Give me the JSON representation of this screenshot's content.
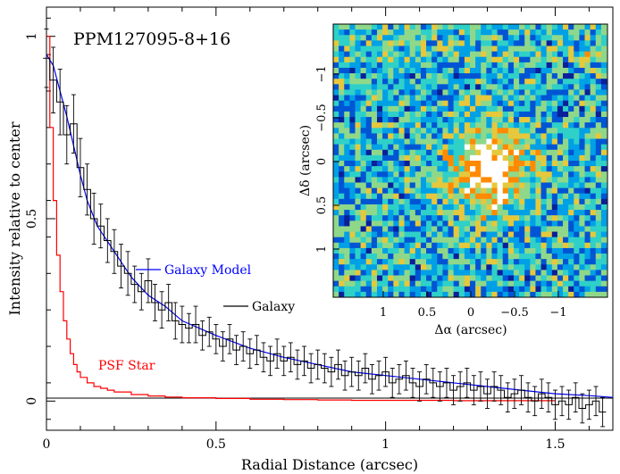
{
  "chart_data": {
    "type": "line",
    "title": "PPM127095-8+16",
    "xlabel": "Radial Distance (arcsec)",
    "ylabel": "Intensity relative to center",
    "xlim": [
      0,
      1.67
    ],
    "ylim": [
      -0.08,
      1.08
    ],
    "x_ticks": [
      0,
      0.5,
      1,
      1.5
    ],
    "x_tick_labels": [
      "0",
      "0.5",
      "1",
      "1.5"
    ],
    "y_ticks": [
      0,
      0.5,
      1
    ],
    "y_tick_labels": [
      "0",
      "0.5",
      "1"
    ],
    "series": [
      {
        "name": "Galaxy",
        "color": "#000000",
        "style": "step-with-errorbars",
        "x": [
          0.0,
          0.02,
          0.04,
          0.06,
          0.08,
          0.1,
          0.12,
          0.14,
          0.16,
          0.18,
          0.2,
          0.22,
          0.24,
          0.26,
          0.28,
          0.3,
          0.32,
          0.34,
          0.36,
          0.38,
          0.4,
          0.42,
          0.44,
          0.46,
          0.48,
          0.5,
          0.52,
          0.54,
          0.56,
          0.58,
          0.6,
          0.62,
          0.64,
          0.66,
          0.68,
          0.7,
          0.72,
          0.74,
          0.76,
          0.78,
          0.8,
          0.82,
          0.84,
          0.86,
          0.88,
          0.9,
          0.92,
          0.94,
          0.96,
          0.98,
          1.0,
          1.02,
          1.04,
          1.06,
          1.08,
          1.1,
          1.12,
          1.14,
          1.16,
          1.18,
          1.2,
          1.22,
          1.24,
          1.26,
          1.28,
          1.3,
          1.32,
          1.34,
          1.36,
          1.38,
          1.4,
          1.42,
          1.44,
          1.46,
          1.48,
          1.5,
          1.52,
          1.54,
          1.56,
          1.58,
          1.6,
          1.62,
          1.64
        ],
        "values": [
          0.94,
          0.88,
          0.82,
          0.73,
          0.76,
          0.64,
          0.58,
          0.5,
          0.48,
          0.44,
          0.41,
          0.37,
          0.35,
          0.32,
          0.3,
          0.33,
          0.27,
          0.25,
          0.27,
          0.22,
          0.21,
          0.2,
          0.21,
          0.18,
          0.19,
          0.17,
          0.15,
          0.17,
          0.14,
          0.15,
          0.13,
          0.14,
          0.12,
          0.11,
          0.13,
          0.11,
          0.12,
          0.1,
          0.11,
          0.09,
          0.1,
          0.09,
          0.08,
          0.1,
          0.07,
          0.08,
          0.07,
          0.09,
          0.06,
          0.07,
          0.08,
          0.05,
          0.06,
          0.07,
          0.05,
          0.04,
          0.06,
          0.05,
          0.04,
          0.05,
          0.03,
          0.04,
          0.05,
          0.03,
          0.04,
          0.02,
          0.04,
          0.03,
          0.01,
          0.02,
          0.03,
          0.01,
          0.0,
          0.02,
          0.01,
          -0.01,
          0.0,
          -0.01,
          0.01,
          -0.02,
          -0.01,
          0.0,
          -0.03
        ],
        "errors": [
          0.08,
          0.09,
          0.09,
          0.08,
          0.08,
          0.08,
          0.07,
          0.07,
          0.06,
          0.06,
          0.06,
          0.06,
          0.06,
          0.05,
          0.05,
          0.06,
          0.05,
          0.05,
          0.05,
          0.05,
          0.05,
          0.04,
          0.05,
          0.04,
          0.04,
          0.04,
          0.04,
          0.04,
          0.04,
          0.04,
          0.04,
          0.04,
          0.04,
          0.04,
          0.04,
          0.04,
          0.04,
          0.04,
          0.04,
          0.04,
          0.04,
          0.04,
          0.04,
          0.04,
          0.04,
          0.04,
          0.04,
          0.04,
          0.04,
          0.04,
          0.04,
          0.04,
          0.04,
          0.04,
          0.04,
          0.04,
          0.04,
          0.04,
          0.04,
          0.04,
          0.04,
          0.04,
          0.04,
          0.04,
          0.04,
          0.04,
          0.04,
          0.04,
          0.04,
          0.04,
          0.04,
          0.04,
          0.04,
          0.04,
          0.04,
          0.04,
          0.04,
          0.04,
          0.04,
          0.04,
          0.04,
          0.04,
          0.04
        ]
      },
      {
        "name": "Galaxy Model",
        "color": "#0000ff",
        "style": "line",
        "x": [
          0.0,
          0.02,
          0.04,
          0.06,
          0.08,
          0.1,
          0.12,
          0.15,
          0.2,
          0.25,
          0.3,
          0.35,
          0.4,
          0.5,
          0.6,
          0.7,
          0.8,
          0.9,
          1.0,
          1.1,
          1.2,
          1.3,
          1.4,
          1.5,
          1.6,
          1.67
        ],
        "values": [
          0.95,
          0.92,
          0.85,
          0.78,
          0.7,
          0.62,
          0.55,
          0.48,
          0.41,
          0.34,
          0.29,
          0.26,
          0.22,
          0.18,
          0.145,
          0.12,
          0.1,
          0.08,
          0.07,
          0.06,
          0.05,
          0.04,
          0.03,
          0.02,
          0.015,
          0.01
        ]
      },
      {
        "name": "PSF Star",
        "color": "#ff0000",
        "style": "step",
        "x": [
          0.0,
          0.01,
          0.02,
          0.03,
          0.04,
          0.05,
          0.06,
          0.07,
          0.08,
          0.09,
          0.1,
          0.12,
          0.14,
          0.16,
          0.18,
          0.2,
          0.25,
          0.3,
          0.35,
          0.4,
          0.5,
          0.6,
          0.7,
          0.8,
          0.9,
          1.0,
          1.1,
          1.2,
          1.3,
          1.4
        ],
        "values": [
          1.0,
          0.75,
          0.55,
          0.4,
          0.3,
          0.22,
          0.17,
          0.13,
          0.1,
          0.08,
          0.065,
          0.05,
          0.04,
          0.035,
          0.03,
          0.025,
          0.018,
          0.014,
          0.011,
          0.009,
          0.007,
          0.005,
          0.004,
          0.003,
          0.002,
          0.002,
          0.002,
          0.001,
          0.001,
          0.001
        ]
      }
    ],
    "annotations": {
      "galaxy_model_label": "Galaxy Model",
      "galaxy_label": "Galaxy",
      "psf_label": "PSF Star"
    },
    "inset": {
      "type": "heatmap",
      "xlabel": "Δα (arcsec)",
      "ylabel": "Δδ (arcsec)",
      "x_tick_labels": [
        "1",
        "0.5",
        "0",
        "−0.5",
        "−1"
      ],
      "y_tick_labels": [
        "1",
        "0.5",
        "0",
        "−0.5",
        "−1"
      ],
      "colormap": [
        "#0a1f9a",
        "#0055d4",
        "#00a0e6",
        "#2fd0c8",
        "#8fd88a",
        "#e6c83c",
        "#ff8a00",
        "#ffffff"
      ]
    }
  }
}
